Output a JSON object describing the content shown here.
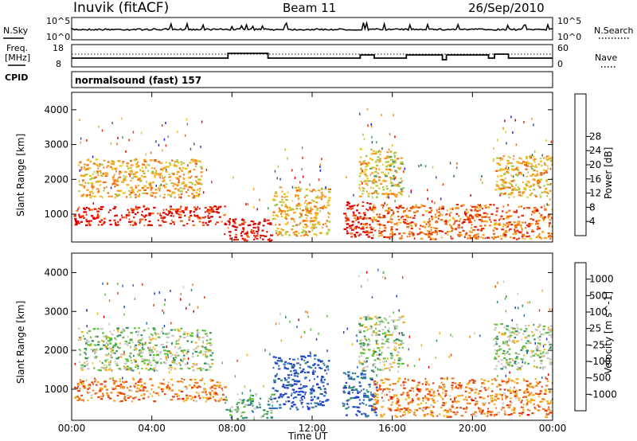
{
  "header": {
    "station": "Inuvik (fitACF)",
    "beam": "Beam 11",
    "date": "26/Sep/2010"
  },
  "top_panels": {
    "nsky_label": "N.Sky",
    "nsky_top": "10^5",
    "nsky_bottom": "10^0",
    "nsearch_label": "N.Search",
    "nsearch_top": "10^5",
    "nsearch_bottom": "10^0",
    "freq_label_1": "Freq.",
    "freq_label_2": "[MHz]",
    "freq_top": "18",
    "freq_bottom": "8",
    "nave_label": "Nave",
    "nave_top": "60",
    "nave_bottom": "0",
    "cpid_label": "CPID",
    "cpid_value": "normalsound (fast) 157"
  },
  "chart_data": [
    {
      "type": "heatmap",
      "title": "",
      "xlabel": "Time UT",
      "ylabel": "Slant Range [km]",
      "x_ticks": [
        "00:00",
        "04:00",
        "08:00",
        "12:00",
        "16:00",
        "20:00",
        "00:00"
      ],
      "y_ticks": [
        1000,
        2000,
        3000,
        4000
      ],
      "ylim": [
        200,
        4500
      ],
      "colorbar_label": "Power [dB]",
      "colorbar_ticks": [
        4,
        8,
        12,
        16,
        20,
        24,
        28
      ],
      "colorbar_colors": [
        "#1e1eff",
        "#2a4fb0",
        "#2f6f5a",
        "#4f9a6a",
        "#a9c84a",
        "#f0c020",
        "#f89a20",
        "#f06a10",
        "#e83010",
        "#e00000"
      ],
      "echo_regions": [
        {
          "t0": 0.1,
          "t1": 7.6,
          "r0": 700,
          "r1": 1250,
          "level": 0.92
        },
        {
          "t0": 0.3,
          "t1": 6.5,
          "r0": 1500,
          "r1": 2600,
          "level": 0.62
        },
        {
          "t0": 7.6,
          "t1": 10.0,
          "r0": 250,
          "r1": 900,
          "level": 0.95
        },
        {
          "t0": 10.0,
          "t1": 12.8,
          "r0": 400,
          "r1": 1800,
          "level": 0.6
        },
        {
          "t0": 13.5,
          "t1": 15.0,
          "r0": 300,
          "r1": 1400,
          "level": 0.88
        },
        {
          "t0": 14.3,
          "t1": 16.5,
          "r0": 1500,
          "r1": 2900,
          "level": 0.55
        },
        {
          "t0": 15.0,
          "t1": 24.0,
          "r0": 300,
          "r1": 1300,
          "level": 0.75
        },
        {
          "t0": 21.0,
          "t1": 24.0,
          "r0": 1500,
          "r1": 2700,
          "level": 0.6
        }
      ]
    },
    {
      "type": "heatmap",
      "title": "",
      "xlabel": "Time UT",
      "ylabel": "Slant Range [km]",
      "x_ticks": [
        "00:00",
        "04:00",
        "08:00",
        "12:00",
        "16:00",
        "20:00",
        "00:00"
      ],
      "y_ticks": [
        1000,
        2000,
        3000,
        4000
      ],
      "ylim": [
        200,
        4500
      ],
      "colorbar_label": "Velocity [m s^-1]",
      "colorbar_ticks": [
        1000,
        500,
        100,
        25,
        -25,
        -100,
        -500,
        -1000
      ],
      "colorbar_colors": [
        "#2040c8",
        "#3070c0",
        "#2f8f6a",
        "#60c040",
        "#c8c8c0",
        "#f0b020",
        "#f08020",
        "#e84010",
        "#e00000"
      ],
      "echo_regions": [
        {
          "t0": 0.1,
          "t1": 7.6,
          "r0": 700,
          "r1": 1300,
          "level": 0.72
        },
        {
          "t0": 0.3,
          "t1": 7.0,
          "r0": 1500,
          "r1": 2600,
          "level": 0.45
        },
        {
          "t0": 7.6,
          "t1": 10.0,
          "r0": 250,
          "r1": 900,
          "level": 0.35
        },
        {
          "t0": 10.0,
          "t1": 12.8,
          "r0": 500,
          "r1": 1900,
          "level": 0.08
        },
        {
          "t0": 13.5,
          "t1": 15.2,
          "r0": 300,
          "r1": 1500,
          "level": 0.12
        },
        {
          "t0": 14.3,
          "t1": 16.5,
          "r0": 1500,
          "r1": 2900,
          "level": 0.45
        },
        {
          "t0": 15.0,
          "t1": 24.0,
          "r0": 300,
          "r1": 1300,
          "level": 0.72
        },
        {
          "t0": 21.0,
          "t1": 24.0,
          "r0": 1500,
          "r1": 2700,
          "level": 0.45
        }
      ]
    }
  ]
}
